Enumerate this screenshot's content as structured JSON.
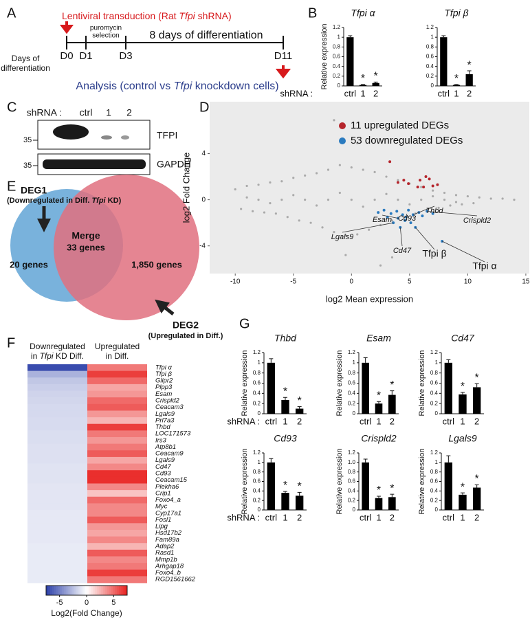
{
  "panel_labels": [
    "A",
    "B",
    "C",
    "D",
    "E",
    "F",
    "G"
  ],
  "timeline": {
    "transduction": [
      "Lentiviral transduction (Rat ",
      "Tfpi",
      " shRNA)"
    ],
    "days_label": [
      "Days of",
      "differentiation"
    ],
    "days": [
      "D0",
      "D1",
      "D3",
      "D11"
    ],
    "selection": [
      "puromycin",
      "selection"
    ],
    "period": "8 days of differentiation",
    "analysis": [
      "Analysis (control vs ",
      "Tfpi",
      " knockdown cells)"
    ]
  },
  "western": {
    "prefix": "shRNA :",
    "lanes": [
      "ctrl",
      "1",
      "2"
    ],
    "bands": [
      "TFPI",
      "GAPDH"
    ],
    "markers": [
      "35",
      "35"
    ]
  },
  "venn": {
    "deg1": "DEG1",
    "deg1_desc": [
      "(Downregulated in Diff. ",
      "Tfpi",
      " KD)"
    ],
    "merge": "Merge",
    "overlap": "33 genes",
    "left": "20 genes",
    "right": "1,850 genes",
    "deg2": "DEG2",
    "deg2_desc": "(Upregulated in Diff.)"
  },
  "chart_data": [
    {
      "type": "bar",
      "title": "Tfpi α",
      "ylabel": "Relative expression",
      "xlabel": "shRNA :",
      "categories": [
        "ctrl",
        "1",
        "2"
      ],
      "values": [
        1,
        0.02,
        0.06
      ],
      "errors": [
        0.03,
        0.01,
        0.02
      ],
      "significance": [
        null,
        "*",
        "*"
      ],
      "color": "#000000",
      "ylim": [
        0,
        1.2
      ],
      "yticks": [
        0,
        0.2,
        0.4,
        0.6,
        0.8,
        1,
        1.2
      ]
    },
    {
      "type": "bar",
      "title": "Tfpi β",
      "categories": [
        "ctrl",
        "1",
        "2"
      ],
      "values": [
        1,
        0.02,
        0.24
      ],
      "errors": [
        0.03,
        0.01,
        0.07
      ],
      "significance": [
        null,
        "*",
        "*"
      ],
      "color": "#000000",
      "ylim": [
        0,
        1.2
      ],
      "yticks": [
        0,
        0.2,
        0.4,
        0.6,
        0.8,
        1,
        1.2
      ]
    },
    {
      "type": "scatter",
      "xlabel": "log2 Mean expression",
      "ylabel": "log2 Fold Change",
      "xlim": [
        -12.2,
        15.3
      ],
      "xticks": [
        -10,
        -5,
        0,
        5,
        10,
        15
      ],
      "ylim": [
        -6.4,
        8.5
      ],
      "yticks": [
        -4,
        0,
        4
      ],
      "background": "#ebebeb",
      "legend": "upper right",
      "series": [
        {
          "color": "#aaaaaa",
          "x": [
            -10,
            -9.5,
            -9,
            -8.5,
            -8,
            -7.5,
            -7,
            -6.5,
            -6,
            -5.5,
            -5,
            -4.5,
            -4,
            -3.5,
            -3,
            -2.5,
            -2,
            -1.5,
            -1,
            -0.5,
            0,
            0.5,
            1,
            1.5,
            2,
            2.5,
            3,
            3.5,
            4,
            4.5,
            5,
            5.5,
            6,
            6.5,
            7,
            7.5,
            8,
            8.5,
            9,
            9.5,
            10,
            10.5,
            11,
            12,
            13,
            14,
            -9,
            -7,
            -5,
            -3,
            -1,
            1,
            3,
            5,
            7,
            9,
            -8,
            -6,
            -4,
            -2,
            0,
            2,
            4,
            6,
            8,
            -1.5,
            -0.5,
            0.5,
            2.5,
            3.5
          ],
          "values": [
            0.9,
            -0.8,
            1.2,
            -1.0,
            1.3,
            -1.1,
            1.5,
            -1.2,
            1.6,
            -1.5,
            1.9,
            -1.8,
            2.1,
            -2.0,
            2.3,
            -2.4,
            2.6,
            -2.8,
            3.0,
            -3.1,
            2.8,
            -3.0,
            2.6,
            -2.6,
            2.4,
            -2.2,
            2.0,
            -1.8,
            1.7,
            -1.5,
            1.4,
            -1.2,
            1.1,
            -0.9,
            0.8,
            -0.7,
            0.6,
            -0.5,
            0.4,
            -0.4,
            0.3,
            -0.3,
            0.2,
            0.1,
            0.1,
            0,
            0.2,
            -0.3,
            0.4,
            -0.5,
            0.6,
            -0.6,
            0.5,
            -0.4,
            0.3,
            -0.2,
            0,
            0,
            0,
            0,
            0,
            0,
            0,
            0,
            0,
            6.9,
            -4.8,
            4.9,
            -5.7,
            -5.0
          ]
        },
        {
          "name": "11 upregulated DEGs",
          "color": "#b5252c",
          "x": [
            3.3,
            4.5,
            4.9,
            5.7,
            6.2,
            6.4,
            6.7,
            7.0,
            7.4,
            5.9,
            4.0
          ],
          "values": [
            3.3,
            1.7,
            1.4,
            1.1,
            1.1,
            2.0,
            1.8,
            1.2,
            1.3,
            1.7,
            1.5
          ]
        },
        {
          "name": "53 downregulated DEGs",
          "color": "#2b7bbf",
          "x": [
            2.3,
            2.8,
            3.1,
            3.4,
            3.6,
            3.9,
            4.0,
            4.2,
            4.4,
            4.6,
            4.7,
            4.9,
            5.1,
            5.3,
            5.5,
            5.8,
            6.1,
            6.5,
            7.0,
            7.8
          ],
          "values": [
            -1.1,
            -0.9,
            -1.5,
            -1.2,
            -2.0,
            -1.0,
            -1.6,
            -2.4,
            -1.3,
            -1.8,
            -1.5,
            -0.9,
            -2.0,
            -1.3,
            -2.4,
            -1.1,
            -1.4,
            -1.0,
            -1.2,
            -3.6
          ]
        }
      ],
      "annotations": [
        {
          "text": "Lgals9",
          "x": 3.6,
          "y": -2.0
        },
        {
          "text": "Esam",
          "x": 4.0,
          "y": -1.6
        },
        {
          "text": "Cd93",
          "x": 4.7,
          "y": -1.5
        },
        {
          "text": "Cd47",
          "x": 4.2,
          "y": -2.4
        },
        {
          "text": "Thbd",
          "x": 5.3,
          "y": -1.3
        },
        {
          "text": "Crispld2",
          "x": 6.5,
          "y": -1.0
        },
        {
          "text": "Tfpi β",
          "x": 5.5,
          "y": -2.4
        },
        {
          "text": "Tfpi α",
          "x": 7.8,
          "y": -3.6
        }
      ]
    },
    {
      "type": "heatmap",
      "colorbar_label": "Log2(Fold Change)",
      "clim": [
        -7.5,
        7.5
      ],
      "cticks": [
        -5,
        0,
        5
      ],
      "low_color": "#2b3fa8",
      "high_color": "#e8201e",
      "columns": [
        {
          "line1": "Downregulated",
          "line2": [
            "in ",
            "Tfpi",
            " KD Diff."
          ]
        },
        {
          "line1": "Upregulated",
          "line2": [
            "in Diff."
          ]
        }
      ],
      "rows": [
        "Tfpi α",
        "Tfpi β",
        "Glipr2",
        "Plpp3",
        "Esam",
        "Crispld2",
        "Ceacam3",
        "Lgals9",
        "Prl7a3",
        "Thbd",
        "LOC171573",
        "Irs3",
        "Atp8b1",
        "Ceacam9",
        "Lgals9",
        "Cd47",
        "Cd93",
        "Ceacam15",
        "Plekha6",
        "Crip1",
        "Foxo4_a",
        "Myc",
        "Cyp17a1",
        "Fosl1",
        "Lipg",
        "Hsd17b2",
        "Fam89a",
        "Adap2",
        "Rasd1",
        "Mmp1b",
        "Arhgap18",
        "Foxo4_b",
        "RGD1561662"
      ],
      "values": [
        [
          -7.0,
          4.5
        ],
        [
          -3.0,
          6.5
        ],
        [
          -2.2,
          5.0
        ],
        [
          -1.9,
          3.0
        ],
        [
          -1.7,
          3.5
        ],
        [
          -1.6,
          5.0
        ],
        [
          -1.5,
          5.5
        ],
        [
          -1.5,
          3.5
        ],
        [
          -1.4,
          2.5
        ],
        [
          -1.4,
          6.5
        ],
        [
          -1.3,
          4.5
        ],
        [
          -1.3,
          3.5
        ],
        [
          -1.2,
          4.5
        ],
        [
          -1.2,
          5.5
        ],
        [
          -1.2,
          3.0
        ],
        [
          -1.1,
          4.0
        ],
        [
          -1.1,
          7.0
        ],
        [
          -1.1,
          7.0
        ],
        [
          -1.0,
          4.0
        ],
        [
          -1.0,
          2.0
        ],
        [
          -1.0,
          5.0
        ],
        [
          -1.0,
          4.0
        ],
        [
          -0.9,
          4.0
        ],
        [
          -0.9,
          5.5
        ],
        [
          -0.9,
          3.5
        ],
        [
          -0.9,
          3.0
        ],
        [
          -0.9,
          4.0
        ],
        [
          -0.8,
          2.5
        ],
        [
          -0.8,
          5.5
        ],
        [
          -0.8,
          4.0
        ],
        [
          -0.8,
          4.5
        ],
        [
          -0.8,
          6.5
        ],
        [
          -0.8,
          4.5
        ]
      ]
    },
    {
      "type": "bar",
      "title": "Thbd",
      "ylabel": "Relative expression",
      "xlabel": "shRNA :",
      "categories": [
        "ctrl",
        "1",
        "2"
      ],
      "values": [
        1,
        0.27,
        0.1
      ],
      "errors": [
        0.08,
        0.05,
        0.04
      ],
      "significance": [
        null,
        "*",
        "*"
      ],
      "color": "#000000",
      "ylim": [
        0,
        1.2
      ],
      "yticks": [
        0,
        0.2,
        0.4,
        0.6,
        0.8,
        1,
        1.2
      ]
    },
    {
      "type": "bar",
      "title": "Esam",
      "ylabel": "Relative expression",
      "categories": [
        "ctrl",
        "1",
        "2"
      ],
      "values": [
        1,
        0.2,
        0.37
      ],
      "errors": [
        0.1,
        0.04,
        0.08
      ],
      "significance": [
        null,
        "*",
        "*"
      ],
      "color": "#000000",
      "ylim": [
        0,
        1.2
      ],
      "yticks": [
        0,
        0.2,
        0.4,
        0.6,
        0.8,
        1,
        1.2
      ]
    },
    {
      "type": "bar",
      "title": "Cd47",
      "ylabel": "Relative expression",
      "categories": [
        "ctrl",
        "1",
        "2"
      ],
      "values": [
        1,
        0.38,
        0.52
      ],
      "errors": [
        0.06,
        0.04,
        0.07
      ],
      "significance": [
        null,
        "*",
        "*"
      ],
      "color": "#000000",
      "ylim": [
        0,
        1.2
      ],
      "yticks": [
        0,
        0.2,
        0.4,
        0.6,
        0.8,
        1,
        1.2
      ]
    },
    {
      "type": "bar",
      "title": "Cd93",
      "ylabel": "Relative expression",
      "xlabel": "shRNA :",
      "categories": [
        "ctrl",
        "1",
        "2"
      ],
      "values": [
        1,
        0.36,
        0.3
      ],
      "errors": [
        0.08,
        0.03,
        0.07
      ],
      "significance": [
        null,
        "*",
        "*"
      ],
      "color": "#000000",
      "ylim": [
        0,
        1.2
      ],
      "yticks": [
        0,
        0.2,
        0.4,
        0.6,
        0.8,
        1,
        1.2
      ]
    },
    {
      "type": "bar",
      "title": "Crispld2",
      "ylabel": "Relative expression",
      "categories": [
        "ctrl",
        "1",
        "2"
      ],
      "values": [
        1,
        0.25,
        0.27
      ],
      "errors": [
        0.07,
        0.04,
        0.06
      ],
      "significance": [
        null,
        "*",
        "*"
      ],
      "color": "#000000",
      "ylim": [
        0,
        1.2
      ],
      "yticks": [
        0,
        {
          "value": 0.2,
          "label": "0.2"
        },
        0.4,
        0.6,
        0.8,
        {
          "value": 1,
          "label": "1.0"
        },
        1.2
      ]
    },
    {
      "type": "bar",
      "title": "Lgals9",
      "ylabel": "Relative expression",
      "categories": [
        "ctrl",
        "1",
        "2"
      ],
      "values": [
        1,
        0.32,
        0.47
      ],
      "errors": [
        0.14,
        0.04,
        0.06
      ],
      "significance": [
        null,
        "*",
        "*"
      ],
      "color": "#000000",
      "ylim": [
        0,
        1.2
      ],
      "yticks": [
        0,
        0.2,
        0.4,
        0.6,
        0.8,
        1,
        1.2
      ]
    }
  ]
}
